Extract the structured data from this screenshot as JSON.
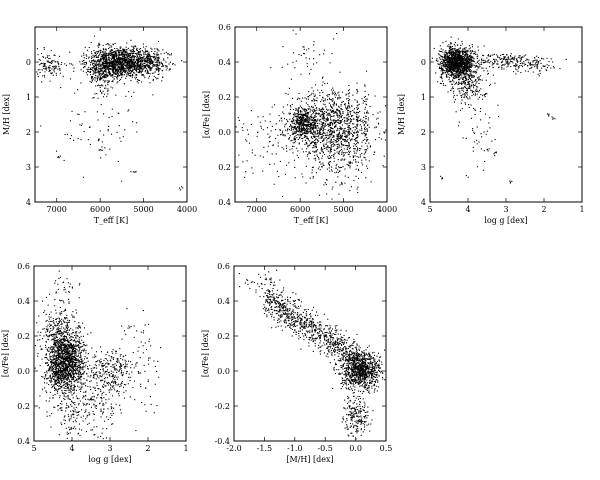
{
  "chart_data": [
    {
      "type": "scatter",
      "xlabel": "T_eff [K]",
      "ylabel": "M/H [dex]",
      "xlim": [
        7500,
        4000
      ],
      "ylim": [
        -4,
        1
      ],
      "x_reversed": true,
      "y_reversed": true,
      "xticks": [
        7000,
        6000,
        5000,
        4000
      ],
      "xtick_labels": [
        "7000",
        "6000",
        "5000",
        "4000"
      ],
      "yticks": [
        -4,
        -3,
        -2,
        -1,
        0
      ],
      "ytick_labels": [
        "4",
        "3",
        "2",
        "1",
        "0"
      ],
      "clusters": [
        {
          "x": 5450,
          "y": 0.0,
          "sx": 420,
          "sy": 0.22,
          "n": 1200
        },
        {
          "x": 6000,
          "y": -0.2,
          "sx": 200,
          "sy": 0.3,
          "n": 260
        },
        {
          "x": 7200,
          "y": -0.1,
          "sx": 170,
          "sy": 0.2,
          "n": 120
        },
        {
          "x": 6100,
          "y": -1.8,
          "sx": 500,
          "sy": 0.6,
          "n": 70
        }
      ],
      "stripes": {
        "x": [
          5900,
          5700,
          5500,
          5300,
          5100,
          4900,
          4700
        ],
        "y": 0.0,
        "sy": 0.22,
        "n": 45
      },
      "extras": [
        {
          "x": 6050,
          "y": -2.2
        },
        {
          "x": 6000,
          "y": -2.5
        },
        {
          "x": 6950,
          "y": -2.7
        },
        {
          "x": 5200,
          "y": -3.1
        },
        {
          "x": 4150,
          "y": -3.6
        }
      ]
    },
    {
      "type": "scatter",
      "xlabel": "T_eff [K]",
      "ylabel": "[α/Fe] [dex]",
      "xlim": [
        7500,
        4000
      ],
      "ylim": [
        -0.4,
        0.6
      ],
      "x_reversed": true,
      "xticks": [
        7000,
        6000,
        5000,
        4000
      ],
      "xtick_labels": [
        "7000",
        "6000",
        "5000",
        "4000"
      ],
      "yticks": [
        -0.4,
        -0.2,
        0.0,
        0.2,
        0.4,
        0.6
      ],
      "ytick_labels": [
        "0.4",
        "0.2",
        "0.0",
        "0.2",
        "0.4",
        "0.6"
      ],
      "clusters": [
        {
          "x": 5950,
          "y": 0.05,
          "sx": 180,
          "sy": 0.05,
          "n": 450
        },
        {
          "x": 5300,
          "y": 0.05,
          "sx": 500,
          "sy": 0.09,
          "n": 650
        },
        {
          "x": 5100,
          "y": -0.12,
          "sx": 450,
          "sy": 0.1,
          "n": 240
        },
        {
          "x": 6600,
          "y": -0.05,
          "sx": 500,
          "sy": 0.1,
          "n": 110
        },
        {
          "x": 5800,
          "y": 0.45,
          "sx": 350,
          "sy": 0.07,
          "n": 40
        }
      ],
      "stripes": {
        "x": [
          5700,
          5500,
          5300,
          5100,
          4900,
          4700,
          4500
        ],
        "y": 0.02,
        "sy": 0.12,
        "n": 55
      }
    },
    {
      "type": "scatter",
      "xlabel": "log g [dex]",
      "ylabel": "M/H [dex]",
      "xlim": [
        5,
        1
      ],
      "ylim": [
        -4,
        1
      ],
      "x_reversed": true,
      "y_reversed": true,
      "xticks": [
        5,
        4,
        3,
        2,
        1
      ],
      "xtick_labels": [
        "5",
        "4",
        "3",
        "2",
        "1"
      ],
      "yticks": [
        -4,
        -3,
        -2,
        -1,
        0
      ],
      "ytick_labels": [
        "4",
        "3",
        "2",
        "1",
        "0"
      ],
      "clusters": [
        {
          "x": 4.3,
          "y": 0.0,
          "sx": 0.22,
          "sy": 0.22,
          "n": 1300
        },
        {
          "x": 4.0,
          "y": -0.6,
          "sx": 0.25,
          "sy": 0.25,
          "n": 220
        },
        {
          "x": 3.0,
          "y": 0.05,
          "sx": 0.35,
          "sy": 0.12,
          "n": 160
        },
        {
          "x": 2.3,
          "y": -0.05,
          "sx": 0.35,
          "sy": 0.12,
          "n": 90
        },
        {
          "x": 3.7,
          "y": -1.9,
          "sx": 0.3,
          "sy": 0.6,
          "n": 50
        }
      ],
      "extras": [
        {
          "x": 1.9,
          "y": -1.5
        },
        {
          "x": 1.8,
          "y": -1.6
        },
        {
          "x": 3.5,
          "y": -2.5
        },
        {
          "x": 3.3,
          "y": -2.55
        },
        {
          "x": 4.7,
          "y": -3.3
        },
        {
          "x": 2.9,
          "y": -3.4
        }
      ]
    },
    {
      "type": "scatter",
      "xlabel": "log g [dex]",
      "ylabel": "[α/Fe] [dex]",
      "xlim": [
        5,
        1
      ],
      "ylim": [
        -0.4,
        0.6
      ],
      "x_reversed": true,
      "xticks": [
        5,
        4,
        3,
        2,
        1
      ],
      "xtick_labels": [
        "5",
        "4",
        "3",
        "2",
        "1"
      ],
      "yticks": [
        -0.4,
        -0.2,
        0.0,
        0.2,
        0.4,
        0.6
      ],
      "ytick_labels": [
        "0.4",
        "0.2",
        "0.0",
        "0.2",
        "0.4",
        "0.6"
      ],
      "clusters": [
        {
          "x": 4.2,
          "y": 0.05,
          "sx": 0.25,
          "sy": 0.09,
          "n": 1500
        },
        {
          "x": 4.4,
          "y": 0.25,
          "sx": 0.25,
          "sy": 0.07,
          "n": 200
        },
        {
          "x": 3.0,
          "y": 0.0,
          "sx": 0.3,
          "sy": 0.06,
          "n": 200
        },
        {
          "x": 3.3,
          "y": -0.15,
          "sx": 0.3,
          "sy": 0.12,
          "n": 180
        },
        {
          "x": 4.0,
          "y": -0.25,
          "sx": 0.25,
          "sy": 0.08,
          "n": 120
        },
        {
          "x": 2.2,
          "y": 0.05,
          "sx": 0.3,
          "sy": 0.15,
          "n": 80
        },
        {
          "x": 4.2,
          "y": 0.48,
          "sx": 0.2,
          "sy": 0.04,
          "n": 30
        }
      ]
    },
    {
      "type": "scatter",
      "xlabel": "[M/H] [dex]",
      "ylabel": "[α/Fe] [dex]",
      "xlim": [
        -2.0,
        0.5
      ],
      "ylim": [
        -0.4,
        0.6
      ],
      "xticks": [
        -2.0,
        -1.5,
        -1.0,
        -0.5,
        0.0,
        0.5
      ],
      "xtick_labels": [
        "-2.0",
        "-1.5",
        "-1.0",
        "-0.5",
        "0.0",
        "0.5"
      ],
      "yticks": [
        -0.4,
        -0.2,
        0.0,
        0.2,
        0.4,
        0.6
      ],
      "ytick_labels": [
        "-0.4",
        "-0.2",
        "0.0",
        "0.2",
        "0.4",
        "0.6"
      ],
      "trend": {
        "x": [
          -1.5,
          0.4
        ],
        "y": [
          0.42,
          -0.02
        ],
        "sy": 0.05,
        "n": 1100
      },
      "clusters": [
        {
          "x": 0.05,
          "y": 0.0,
          "sx": 0.15,
          "sy": 0.05,
          "n": 700
        },
        {
          "x": 0.0,
          "y": -0.25,
          "sx": 0.1,
          "sy": 0.06,
          "n": 200
        },
        {
          "x": -1.6,
          "y": 0.5,
          "sx": 0.2,
          "sy": 0.04,
          "n": 25
        }
      ]
    }
  ]
}
